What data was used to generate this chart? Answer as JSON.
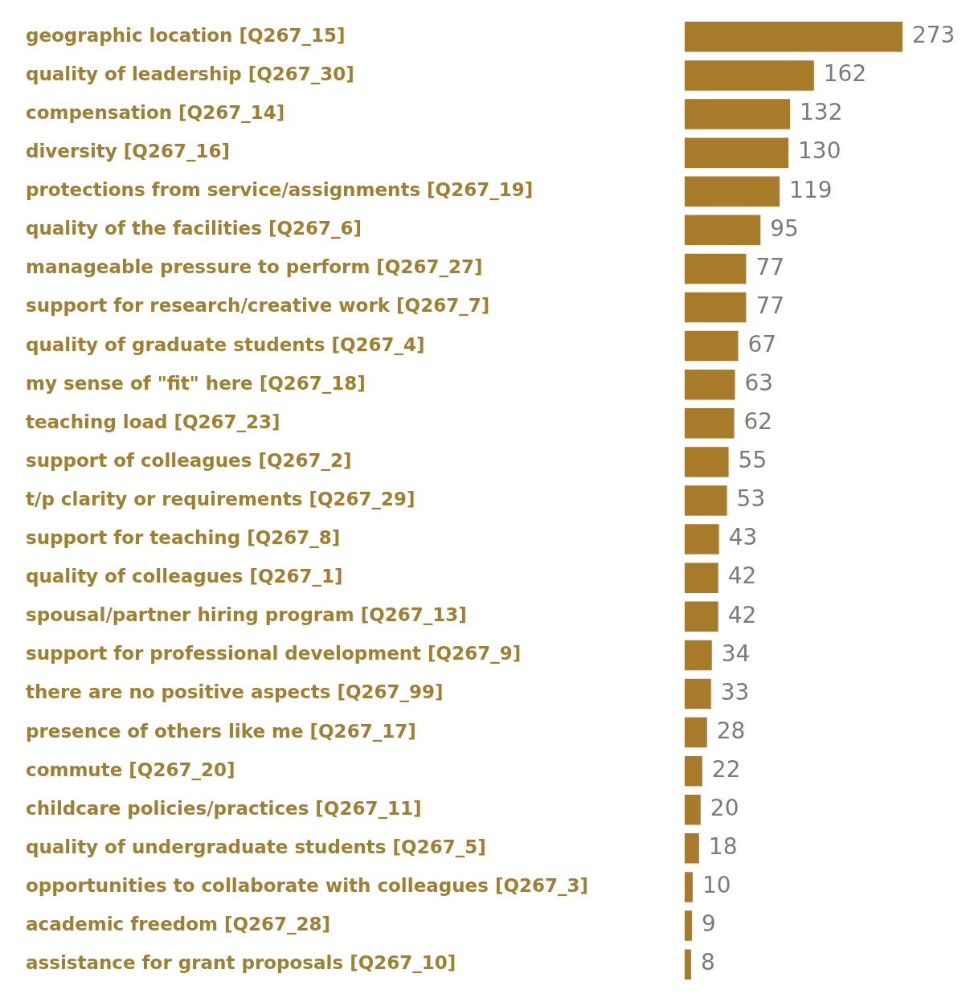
{
  "chart_data": {
    "type": "bar",
    "orientation": "horizontal",
    "data_labels": true,
    "color": "#a87b2b",
    "categories": [
      "geographic location [Q267_15]",
      "quality of leadership [Q267_30]",
      "compensation [Q267_14]",
      "diversity [Q267_16]",
      "protections from service/assignments [Q267_19]",
      "quality of the facilities [Q267_6]",
      "manageable pressure to perform [Q267_27]",
      "support for research/creative work [Q267_7]",
      "quality of graduate students [Q267_4]",
      "my sense of \"fit\" here [Q267_18]",
      "teaching load [Q267_23]",
      "support of colleagues [Q267_2]",
      "t/p clarity or requirements [Q267_29]",
      "support for teaching [Q267_8]",
      "quality of colleagues [Q267_1]",
      "spousal/partner hiring program [Q267_13]",
      "support for professional development [Q267_9]",
      "there are no positive aspects [Q267_99]",
      "presence of others like me [Q267_17]",
      "commute [Q267_20]",
      "childcare policies/practices [Q267_11]",
      "quality of undergraduate students [Q267_5]",
      "opportunities to collaborate with colleagues [Q267_3]",
      "academic freedom [Q267_28]",
      "assistance for grant proposals [Q267_10]"
    ],
    "values": [
      273,
      162,
      132,
      130,
      119,
      95,
      77,
      77,
      67,
      63,
      62,
      55,
      53,
      43,
      42,
      42,
      34,
      33,
      28,
      22,
      20,
      18,
      10,
      9,
      8
    ]
  }
}
